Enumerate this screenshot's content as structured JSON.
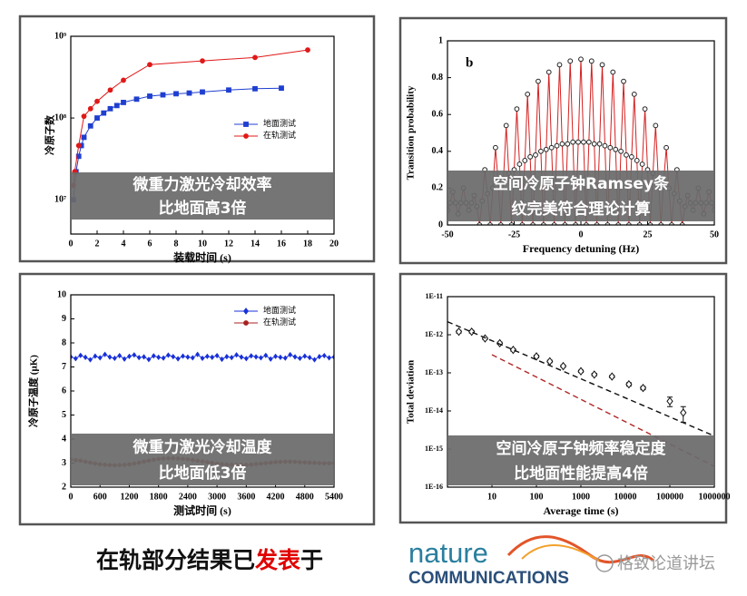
{
  "chart_data": [
    {
      "type": "line",
      "ylabel": "冷原子数",
      "xlabel": "装载时间 (s)",
      "xlim": [
        0,
        20
      ],
      "xticks": [
        0,
        2,
        4,
        6,
        8,
        10,
        12,
        14,
        16,
        18,
        20
      ],
      "ylim": [
        3800000,
        1000000000
      ],
      "ylog": true,
      "yticks": [
        {
          "value": 10000000,
          "label": "10⁷"
        },
        {
          "value": 100000000,
          "label": "10⁸"
        },
        {
          "value": 1000000000,
          "label": "10⁹"
        }
      ],
      "legend": "center right",
      "series": [
        {
          "name": "地面测试",
          "color": "#1f3fd0",
          "marker": "square",
          "x": [
            0.2,
            0.4,
            0.6,
            0.8,
            1,
            1.5,
            2,
            2.5,
            3,
            3.5,
            4,
            5,
            6,
            7,
            8,
            9,
            10,
            12,
            14,
            16
          ],
          "values": [
            10000000.0,
            22000000.0,
            34000000.0,
            46000000.0,
            58000000.0,
            80000000.0,
            100000000.0,
            115000000.0,
            130000000.0,
            142000000.0,
            155000000.0,
            170000000.0,
            185000000.0,
            192000000.0,
            198000000.0,
            202000000.0,
            208000000.0,
            220000000.0,
            228000000.0,
            232000000.0
          ]
        },
        {
          "name": "在轨测试",
          "color": "#e01818",
          "marker": "circle",
          "x": [
            0.2,
            0.3,
            0.6,
            1,
            1.5,
            2,
            3,
            4,
            6,
            10,
            14,
            18
          ],
          "values": [
            15000000.0,
            22000000.0,
            46000000.0,
            105000000.0,
            130000000.0,
            160000000.0,
            220000000.0,
            290000000.0,
            450000000.0,
            500000000.0,
            550000000.0,
            680000000.0
          ]
        }
      ],
      "overlay": [
        "微重力激光冷却效率",
        "比地面高3倍"
      ]
    },
    {
      "type": "line",
      "title": "b",
      "ylabel": "Transition probability",
      "xlabel": "Frequency detuning (Hz)",
      "xlim": [
        -50,
        50
      ],
      "xticks": [
        -50,
        -25,
        0,
        25,
        50
      ],
      "ylim": [
        0,
        1
      ],
      "yticks": [
        0,
        0.2,
        0.4,
        0.6,
        0.8,
        1
      ],
      "x": [
        -50,
        -49,
        -48,
        -47,
        -46,
        -45,
        -44,
        -43,
        -42,
        -41,
        -40,
        -39,
        -38,
        -37,
        -36,
        -35,
        -34,
        -33,
        -32,
        -31,
        -30,
        -29,
        -28,
        -27,
        -26,
        -25,
        -24,
        -23,
        -22,
        -21,
        -20,
        -19,
        -18,
        -17,
        -16,
        -15,
        -14,
        -13,
        -12,
        -11,
        -10,
        -9,
        -8,
        -7,
        -6,
        -5,
        -4,
        -3,
        -2,
        -1,
        0,
        1,
        2,
        3,
        4,
        5,
        6,
        7,
        8,
        9,
        10,
        11,
        12,
        13,
        14,
        15,
        16,
        17,
        18,
        19,
        20,
        21,
        22,
        23,
        24,
        25,
        26,
        27,
        28,
        29,
        30,
        31,
        32,
        33,
        34,
        35,
        36,
        37,
        38,
        39,
        40,
        41,
        42,
        43,
        44,
        45,
        46,
        47,
        48,
        49,
        50
      ],
      "series": [
        {
          "color": "#d42020",
          "marker": "circle-open",
          "marker_color": "#222",
          "values": [
            0.08,
            0.12,
            0.18,
            0.12,
            0.06,
            0.12,
            0.2,
            0.12,
            0.08,
            0.12,
            0.16,
            0.1,
            0,
            0.13,
            0.3,
            0.17,
            0,
            0.2,
            0.42,
            0.23,
            0,
            0.25,
            0.54,
            0.28,
            0,
            0.3,
            0.63,
            0.33,
            0,
            0.35,
            0.71,
            0.37,
            0,
            0.38,
            0.78,
            0.4,
            0,
            0.41,
            0.83,
            0.42,
            0,
            0.43,
            0.87,
            0.44,
            0,
            0.44,
            0.89,
            0.45,
            0,
            0.45,
            0.9,
            0.45,
            0,
            0.45,
            0.89,
            0.44,
            0,
            0.44,
            0.87,
            0.43,
            0,
            0.42,
            0.83,
            0.41,
            0,
            0.4,
            0.78,
            0.38,
            0,
            0.37,
            0.71,
            0.35,
            0,
            0.33,
            0.63,
            0.3,
            0,
            0.28,
            0.54,
            0.25,
            0,
            0.23,
            0.42,
            0.2,
            0,
            0.17,
            0.3,
            0.13,
            0,
            0.1,
            0.16,
            0.12,
            0.08,
            0.12,
            0.2,
            0.12,
            0.06,
            0.12,
            0.18,
            0.12,
            0.08
          ]
        }
      ],
      "overlay": [
        "空间冷原子钟Ramsey条",
        "纹完美符合理论计算"
      ]
    },
    {
      "type": "line",
      "ylabel": "冷原子温度 (μK)",
      "xlabel": "测试时间 (s)",
      "xlim": [
        0,
        5400
      ],
      "xticks": [
        0,
        600,
        1200,
        1800,
        2400,
        3000,
        3600,
        4200,
        4800,
        5400
      ],
      "ylim": [
        2,
        10
      ],
      "yticks": [
        2,
        3,
        4,
        5,
        6,
        7,
        8,
        9,
        10
      ],
      "legend": "top right",
      "x": [
        0,
        100,
        200,
        300,
        400,
        500,
        600,
        700,
        800,
        900,
        1000,
        1100,
        1200,
        1300,
        1400,
        1500,
        1600,
        1700,
        1800,
        1900,
        2000,
        2100,
        2200,
        2300,
        2400,
        2500,
        2600,
        2700,
        2800,
        2900,
        3000,
        3100,
        3200,
        3300,
        3400,
        3500,
        3600,
        3700,
        3800,
        3900,
        4000,
        4100,
        4200,
        4300,
        4400,
        4500,
        4600,
        4700,
        4800,
        4900,
        5000,
        5100,
        5200,
        5300,
        5400
      ],
      "series": [
        {
          "name": "地面测试",
          "color": "#1830d8",
          "marker": "diamond",
          "values": [
            7.42,
            7.35,
            7.48,
            7.4,
            7.3,
            7.45,
            7.38,
            7.52,
            7.41,
            7.36,
            7.47,
            7.33,
            7.44,
            7.5,
            7.39,
            7.42,
            7.31,
            7.46,
            7.4,
            7.37,
            7.49,
            7.43,
            7.34,
            7.45,
            7.41,
            7.38,
            7.52,
            7.36,
            7.44,
            7.4,
            7.47,
            7.32,
            7.43,
            7.39,
            7.5,
            7.41,
            7.35,
            7.46,
            7.42,
            7.38,
            7.48,
            7.33,
            7.44,
            7.4,
            7.37,
            7.51,
            7.42,
            7.36,
            7.45,
            7.39,
            7.3,
            7.43,
            7.47,
            7.38,
            7.41
          ]
        },
        {
          "name": "在轨测试",
          "color": "#a82020",
          "marker": "circle",
          "values": [
            3.15,
            3.12,
            3.1,
            3.06,
            3.02,
            2.98,
            2.95,
            2.93,
            2.92,
            2.91,
            2.92,
            2.93,
            2.95,
            2.98,
            3.02,
            3.06,
            3.1,
            3.14,
            3.17,
            3.19,
            3.2,
            3.2,
            3.19,
            3.18,
            3.16,
            3.13,
            3.1,
            3.07,
            3.04,
            3.01,
            2.98,
            2.96,
            2.94,
            2.93,
            2.92,
            2.92,
            2.93,
            2.94,
            2.96,
            2.98,
            3.0,
            3.02,
            3.04,
            3.05,
            3.06,
            3.06,
            3.05,
            3.04,
            3.03,
            3.02,
            3.01,
            3.0,
            2.99,
            2.99,
            3.0
          ]
        }
      ],
      "overlay": [
        "微重力激光冷却温度",
        "比地面低3倍"
      ]
    },
    {
      "type": "line",
      "ylabel": "Total deviation",
      "xlabel": "Average time (s)",
      "xlim": [
        1,
        1000000
      ],
      "xlog": true,
      "xticks": [
        10,
        100,
        1000,
        10000,
        100000,
        1000000
      ],
      "ylim": [
        1e-16,
        1e-11
      ],
      "ylog": true,
      "yticks": [
        {
          "value": 1e-16,
          "label": "1E-16"
        },
        {
          "value": 1e-15,
          "label": "1E-15"
        },
        {
          "value": 1e-14,
          "label": "1E-14"
        },
        {
          "value": 1e-13,
          "label": "1E-13"
        },
        {
          "value": 1e-12,
          "label": "1E-12"
        },
        {
          "value": 1e-11,
          "label": "1E-11"
        }
      ],
      "series": [
        {
          "color": "#111111",
          "marker": "diamond-open",
          "line": false,
          "x": [
            1.8,
            3.5,
            7,
            15,
            30,
            100,
            200,
            400,
            1000,
            2000,
            5000,
            12000,
            25000,
            100000,
            200000
          ],
          "values": [
            1.2e-12,
            1.2e-12,
            8e-13,
            6e-13,
            4e-13,
            2.7e-13,
            2e-13,
            1.5e-13,
            1.1e-13,
            9e-14,
            8e-14,
            5e-14,
            4e-14,
            1.8e-14,
            9e-15
          ],
          "errors": [
            1e-13,
            1e-13,
            5e-14,
            4e-14,
            3e-14,
            2e-14,
            1.5e-14,
            1e-14,
            8e-15,
            7e-15,
            6e-15,
            5e-15,
            4e-15,
            5e-15,
            4e-15
          ]
        },
        {
          "color": "#111111",
          "dash": true,
          "x": [
            1,
            1000000
          ],
          "values": [
            2.2e-12,
            2.2e-15
          ]
        },
        {
          "color": "#b02828",
          "dash": true,
          "x": [
            10,
            1000000
          ],
          "values": [
            3e-13,
            3.5e-16
          ]
        }
      ],
      "overlay": [
        "空间冷原子钟频率稳定度",
        "比地面性能提高4倍"
      ]
    }
  ],
  "footer": {
    "caption": [
      "在轨部分结果已",
      "发表",
      "于"
    ],
    "logo": [
      "nature",
      "COMMUNICATIONS"
    ],
    "watermark": "格致论道讲坛"
  }
}
